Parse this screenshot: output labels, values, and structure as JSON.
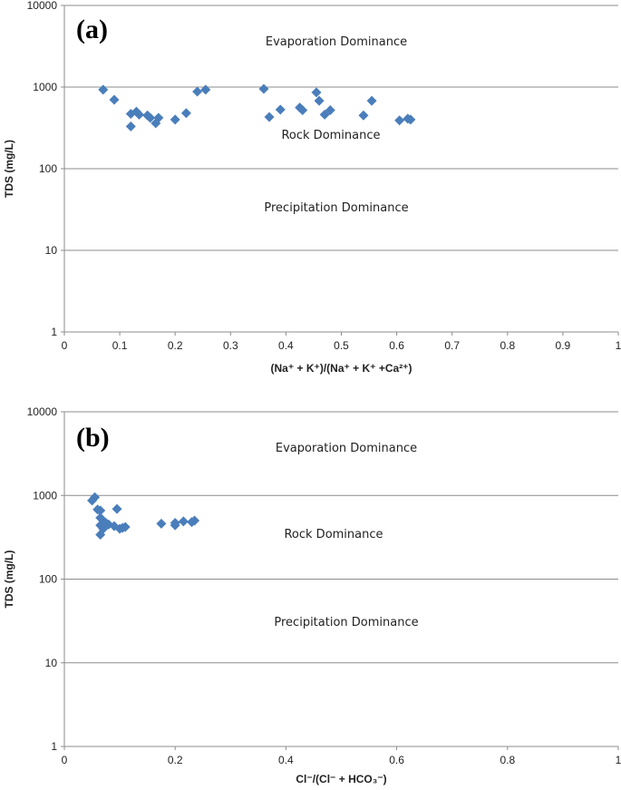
{
  "chart_data": [
    {
      "type": "scatter",
      "panel_label": "(a)",
      "xlabel": "(Na⁺ + K⁺)/(Na⁺ + K⁺ +Ca²⁺)",
      "ylabel": "TDS (mg/L)",
      "xlim": [
        0,
        1
      ],
      "ylim": [
        1,
        10000
      ],
      "y_scale": "log",
      "grid": "horizontal",
      "x_ticks": [
        "0",
        "0.1",
        "0.2",
        "0.3",
        "0.4",
        "0.5",
        "0.6",
        "0.7",
        "0.8",
        "0.9",
        "1"
      ],
      "y_ticks": [
        "1",
        "10",
        "100",
        "1000",
        "10000"
      ],
      "zones": [
        "Evaporation Dominance",
        "Rock Dominance",
        "Precipitation Dominance"
      ],
      "marker_color": "#4a7ebb",
      "points": [
        [
          0.07,
          930
        ],
        [
          0.09,
          700
        ],
        [
          0.12,
          330
        ],
        [
          0.12,
          470
        ],
        [
          0.13,
          500
        ],
        [
          0.135,
          460
        ],
        [
          0.15,
          450
        ],
        [
          0.155,
          420
        ],
        [
          0.165,
          360
        ],
        [
          0.17,
          420
        ],
        [
          0.2,
          400
        ],
        [
          0.22,
          480
        ],
        [
          0.24,
          880
        ],
        [
          0.255,
          930
        ],
        [
          0.36,
          950
        ],
        [
          0.37,
          430
        ],
        [
          0.39,
          530
        ],
        [
          0.425,
          560
        ],
        [
          0.43,
          520
        ],
        [
          0.455,
          860
        ],
        [
          0.46,
          680
        ],
        [
          0.47,
          460
        ],
        [
          0.48,
          520
        ],
        [
          0.54,
          450
        ],
        [
          0.555,
          680
        ],
        [
          0.605,
          390
        ],
        [
          0.62,
          410
        ],
        [
          0.625,
          400
        ]
      ]
    },
    {
      "type": "scatter",
      "panel_label": "(b)",
      "xlabel": "Cl⁻/(Cl⁻ + HCO₃⁻)",
      "ylabel": "TDS (mg/L)",
      "xlim": [
        0,
        1
      ],
      "ylim": [
        1,
        10000
      ],
      "y_scale": "log",
      "grid": "horizontal",
      "x_ticks": [
        "0",
        "0.2",
        "0.4",
        "0.6",
        "0.8",
        "1"
      ],
      "y_ticks": [
        "1",
        "10",
        "100",
        "1000",
        "10000"
      ],
      "zones": [
        "Evaporation Dominance",
        "Rock Dominance",
        "Precipitation Dominance"
      ],
      "marker_color": "#4a7ebb",
      "points": [
        [
          0.05,
          870
        ],
        [
          0.055,
          950
        ],
        [
          0.06,
          680
        ],
        [
          0.065,
          660
        ],
        [
          0.065,
          540
        ],
        [
          0.07,
          500
        ],
        [
          0.065,
          440
        ],
        [
          0.07,
          400
        ],
        [
          0.065,
          340
        ],
        [
          0.075,
          470
        ],
        [
          0.08,
          450
        ],
        [
          0.09,
          430
        ],
        [
          0.095,
          690
        ],
        [
          0.1,
          400
        ],
        [
          0.105,
          410
        ],
        [
          0.11,
          420
        ],
        [
          0.175,
          460
        ],
        [
          0.2,
          440
        ],
        [
          0.2,
          470
        ],
        [
          0.215,
          490
        ],
        [
          0.23,
          480
        ],
        [
          0.235,
          500
        ]
      ]
    }
  ]
}
